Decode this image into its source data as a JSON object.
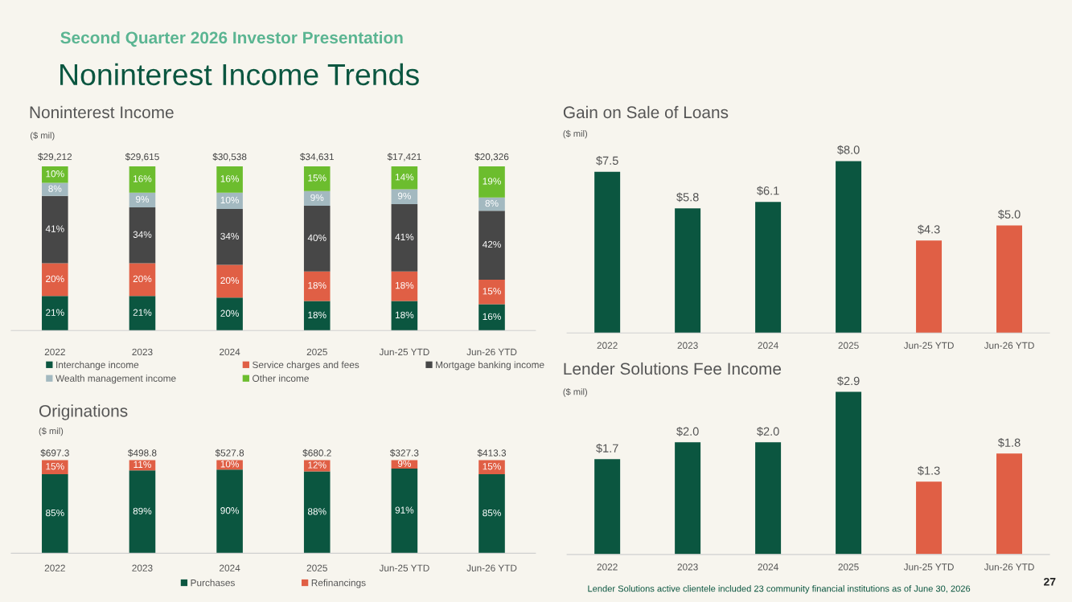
{
  "chart_data": [
    {
      "type": "bar",
      "title": "Noninterest Income",
      "subtitle": "($ mil)",
      "stacked": true,
      "tick_labels": "x",
      "grid": false,
      "legend": "bottom",
      "annotations": [
        "Second Quarter 2026 Investor Presentation",
        "Noninterest Income Trends",
        "$29,212",
        "$29,615",
        "$30,538",
        "$34,631",
        "$17,421",
        "$20,326"
      ],
      "categories": [
        "2022",
        "2023",
        "2024",
        "2025",
        "Jun-25 YTD",
        "Jun-26 YTD"
      ],
      "series": [
        {
          "name": "Interchange income",
          "color": "#0b5640",
          "values": [
            21,
            21,
            20,
            18,
            18,
            16
          ],
          "value_labels": [
            "21%",
            "21%",
            "20%",
            "18%",
            "18%",
            "16%"
          ]
        },
        {
          "name": "Service charges and fees",
          "color": "#e05f45",
          "values": [
            20,
            20,
            20,
            18,
            18,
            15
          ],
          "value_labels": [
            "20%",
            "20%",
            "20%",
            "18%",
            "18%",
            "15%"
          ]
        },
        {
          "name": "Mortgage banking income",
          "color": "#474747",
          "values": [
            41,
            34,
            34,
            40,
            41,
            42
          ],
          "value_labels": [
            "41%",
            "34%",
            "34%",
            "40%",
            "41%",
            "42%"
          ]
        },
        {
          "name": "Wealth management income",
          "color": "#a3b9c0",
          "values": [
            8,
            9,
            10,
            9,
            9,
            8
          ],
          "value_labels": [
            "8%",
            "9%",
            "10%",
            "9%",
            "9%",
            "8%"
          ]
        },
        {
          "name": "Other income",
          "color": "#6cbd2e",
          "values": [
            10,
            16,
            16,
            15,
            14,
            19
          ],
          "value_labels": [
            "10%",
            "16%",
            "16%",
            "15%",
            "14%",
            "19%"
          ]
        }
      ]
    },
    {
      "type": "bar",
      "title": "Gain on Sale of Loans",
      "subtitle": "($ mil)",
      "tick_labels": "x",
      "grid": false,
      "categories": [
        "2022",
        "2023",
        "2024",
        "2025",
        "Jun-25 YTD",
        "Jun-26 YTD"
      ],
      "values": [
        7.5,
        5.8,
        6.1,
        8.0,
        4.3,
        5.0
      ],
      "colors": [
        "#0b5640",
        "#0b5640",
        "#0b5640",
        "#0b5640",
        "#e05f45",
        "#e05f45"
      ],
      "value_labels": [
        "$7.5",
        "$5.8",
        "$6.1",
        "$8.0",
        "$4.3",
        "$5.0"
      ]
    },
    {
      "type": "bar",
      "title": "Originations",
      "subtitle": "($ mil)",
      "stacked": true,
      "tick_labels": "x",
      "grid": false,
      "legend": "bottom",
      "annotations": [
        "$697.3",
        "$498.8",
        "$527.8",
        "$680.2",
        "$327.3",
        "$413.3"
      ],
      "categories": [
        "2022",
        "2023",
        "2024",
        "2025",
        "Jun-25 YTD",
        "Jun-26 YTD"
      ],
      "series": [
        {
          "name": "Purchases",
          "color": "#0b5640",
          "values": [
            85,
            89,
            90,
            88,
            91,
            85
          ],
          "value_labels": [
            "85%",
            "89%",
            "90%",
            "88%",
            "91%",
            "85%"
          ]
        },
        {
          "name": "Refinancings",
          "color": "#e05f45",
          "values": [
            15,
            11,
            10,
            12,
            9,
            15
          ],
          "value_labels": [
            "15%",
            "11%",
            "10%",
            "12%",
            "9%",
            "15%"
          ]
        }
      ]
    },
    {
      "type": "bar",
      "title": "Lender Solutions Fee Income",
      "subtitle": "($ mil)",
      "tick_labels": "x",
      "grid": false,
      "annotations": [
        "Lender Solutions active clientele included 23 community financial institutions as of June 30, 2026",
        "27"
      ],
      "categories": [
        "2022",
        "2023",
        "2024",
        "2025",
        "Jun-25 YTD",
        "Jun-26 YTD"
      ],
      "values": [
        1.7,
        2.0,
        2.0,
        2.9,
        1.3,
        1.8
      ],
      "colors": [
        "#0b5640",
        "#0b5640",
        "#0b5640",
        "#0b5640",
        "#e05f45",
        "#e05f45"
      ],
      "value_labels": [
        "$1.7",
        "$2.0",
        "$2.0",
        "$2.9",
        "$1.3",
        "$1.8"
      ]
    }
  ]
}
